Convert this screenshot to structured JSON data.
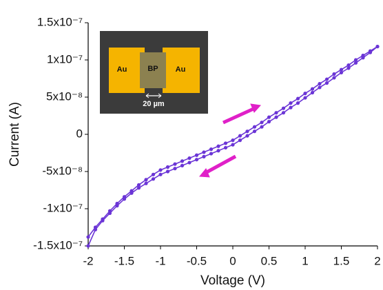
{
  "chart_data": {
    "type": "line",
    "xlabel": "Voltage (V)",
    "ylabel": "Current (A)",
    "x": [
      -2,
      -1.9,
      -1.8,
      -1.7,
      -1.6,
      -1.5,
      -1.4,
      -1.3,
      -1.2,
      -1.1,
      -1,
      -0.9,
      -0.8,
      -0.7,
      -0.6,
      -0.5,
      -0.4,
      -0.3,
      -0.2,
      -0.1,
      0,
      0.1,
      0.2,
      0.3,
      0.4,
      0.5,
      0.6,
      0.7,
      0.8,
      0.9,
      1,
      1.1,
      1.2,
      1.3,
      1.4,
      1.5,
      1.6,
      1.7,
      1.8,
      1.9,
      2
    ],
    "series": [
      {
        "color": "#6b35d6",
        "values": [
          -1.38e-07,
          -1.25e-07,
          -1.14e-07,
          -1.03e-07,
          -9.3e-08,
          -8.4e-08,
          -7.6e-08,
          -6.8e-08,
          -6.1e-08,
          -5.4e-08,
          -4.8e-08,
          -4.4e-08,
          -4e-08,
          -3.6e-08,
          -3.2e-08,
          -2.8e-08,
          -2.4e-08,
          -2e-08,
          -1.6e-08,
          -1.2e-08,
          -8e-09,
          -2e-09,
          4e-09,
          1e-08,
          1.6e-08,
          2.3e-08,
          2.9e-08,
          3.5e-08,
          4.2e-08,
          4.8e-08,
          5.5e-08,
          6.1e-08,
          6.8e-08,
          7.4e-08,
          8.1e-08,
          8.7e-08,
          9.3e-08,
          1e-07,
          1.06e-07,
          1.12e-07,
          1.18e-07
        ]
      },
      {
        "color": "#6b35d6",
        "values": [
          -1.5e-07,
          -1.28e-07,
          -1.16e-07,
          -1.06e-07,
          -9.6e-08,
          -8.7e-08,
          -7.9e-08,
          -7.2e-08,
          -6.6e-08,
          -6e-08,
          -5.4e-08,
          -5e-08,
          -4.6e-08,
          -4.2e-08,
          -3.8e-08,
          -3.4e-08,
          -3e-08,
          -2.6e-08,
          -2.2e-08,
          -1.8e-08,
          -1.4e-08,
          -8e-09,
          -2e-09,
          4e-09,
          1e-08,
          1.7e-08,
          2.3e-08,
          2.9e-08,
          3.6e-08,
          4.2e-08,
          4.9e-08,
          5.6e-08,
          6.3e-08,
          6.9e-08,
          7.6e-08,
          8.3e-08,
          8.9e-08,
          9.6e-08,
          1.03e-07,
          1.1e-07,
          1.18e-07
        ]
      }
    ],
    "xlim": [
      -2,
      2
    ],
    "xticks": [
      -2,
      -1.5,
      -1,
      -0.5,
      0,
      0.5,
      1,
      1.5,
      2
    ],
    "ylim": [
      -1.5e-07,
      1.5e-07
    ],
    "yticks": [
      {
        "value": -1.5e-07,
        "label": "-1.5x10⁻⁷"
      },
      {
        "value": -1e-07,
        "label": "-1x10⁻⁷"
      },
      {
        "value": -5e-08,
        "label": "-5x10⁻⁸"
      },
      0,
      {
        "value": 5e-08,
        "label": "5x10⁻⁸"
      },
      {
        "value": 1e-07,
        "label": "1x10⁻⁷"
      },
      {
        "value": 1.5e-07,
        "label": "1.5x10⁻⁷"
      }
    ],
    "grid": false,
    "inset": {
      "left_pad": "Au",
      "flake": "BP",
      "right_pad": "Au",
      "scale": "20 µm"
    }
  }
}
